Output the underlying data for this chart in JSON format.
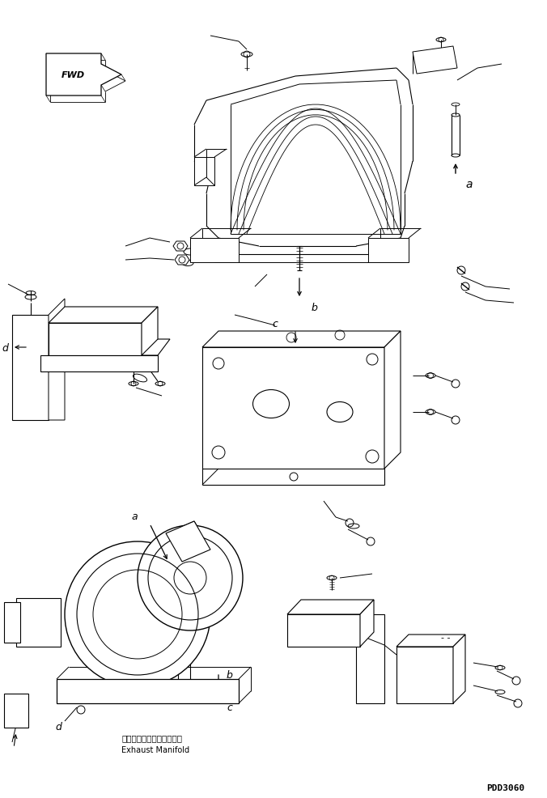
{
  "bg_color": "#ffffff",
  "line_color": "#000000",
  "fig_width": 6.76,
  "fig_height": 9.87,
  "dpi": 100,
  "watermark": "PDD3060",
  "exhaust_label_jp": "エキゾーストマニホールド",
  "exhaust_label_en": "Exhaust Manifold"
}
